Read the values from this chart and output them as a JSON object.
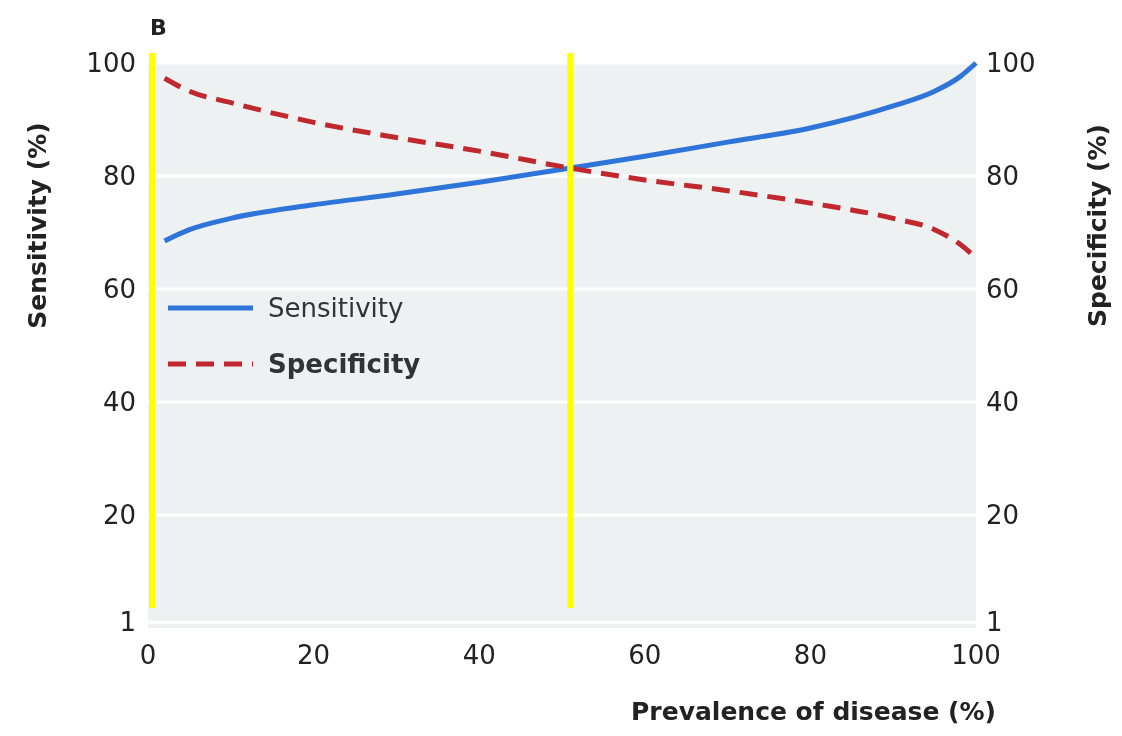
{
  "chart_data": {
    "type": "line",
    "title": "B",
    "xlabel": "Prevalence of disease (%)",
    "ylabel": "Sensitivity (%)",
    "y2label": "Specificity (%)",
    "xlim": [
      0,
      100
    ],
    "xticks": [
      0,
      20,
      40,
      60,
      80,
      100
    ],
    "ylim": [
      0,
      100
    ],
    "yticks": [
      1,
      20,
      40,
      60,
      80,
      100
    ],
    "y2lim": [
      0,
      100
    ],
    "y2ticks": [
      1,
      20,
      40,
      60,
      80,
      100
    ],
    "grid": "y",
    "legend": "left",
    "series": [
      {
        "name": "Sensitivity",
        "color": "#2f74d8",
        "line_style": "solid",
        "x": [
          2,
          5,
          10,
          20,
          30,
          40,
          51,
          60,
          70,
          80,
          90,
          95,
          98,
          100
        ],
        "values": [
          68.5,
          70.5,
          72.5,
          74.9,
          76.8,
          78.9,
          81.4,
          83.5,
          86,
          88.5,
          92.4,
          95,
          97.5,
          100
        ]
      },
      {
        "name": "Specificity",
        "color": "#c0282d",
        "line_style": "dashed",
        "axis": "y2",
        "x": [
          2,
          5,
          10,
          20,
          30,
          40,
          51,
          60,
          70,
          80,
          90,
          95,
          98,
          100
        ],
        "values": [
          97.3,
          95,
          93,
          89.5,
          86.8,
          84.4,
          81.4,
          79.3,
          77.4,
          75.2,
          72.5,
          70.5,
          68,
          65.5
        ]
      }
    ],
    "ref_lines": [
      {
        "axis": "x",
        "value": 0.5,
        "color": "#ffff00"
      },
      {
        "axis": "x",
        "value": 51,
        "color": "#ffff00"
      }
    ]
  }
}
